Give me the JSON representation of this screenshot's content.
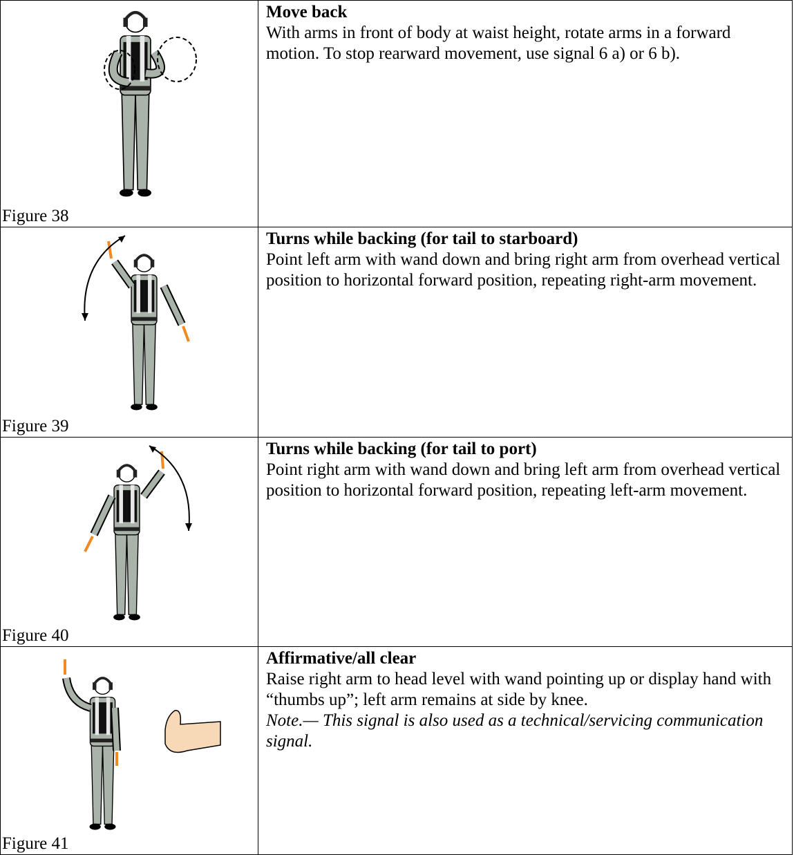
{
  "rows": [
    {
      "figure": "Figure 38",
      "title": "Move back",
      "description": "With arms in front of body at waist height, rotate arms in a forward motion. To stop rearward movement, use signal 6 a) or 6 b)."
    },
    {
      "figure": "Figure 39",
      "title": "Turns while backing (for tail to starboard)",
      "description": "Point left arm with wand down and bring right arm from overhead vertical position to horizontal forward position, repeating right-arm movement."
    },
    {
      "figure": "Figure 40",
      "title": "Turns while backing (for tail to port)",
      "description": "Point right arm with wand down and bring left arm from overhead vertical position to horizontal forward position, repeating left-arm movement."
    },
    {
      "figure": "Figure 41",
      "title": "Affirmative/all clear",
      "description": "Raise right arm to head level with wand pointing up or display hand with “thumbs up”; left arm remains at side by knee.",
      "note": "Note.— This signal is also used as a technical/servicing communication signal."
    }
  ]
}
